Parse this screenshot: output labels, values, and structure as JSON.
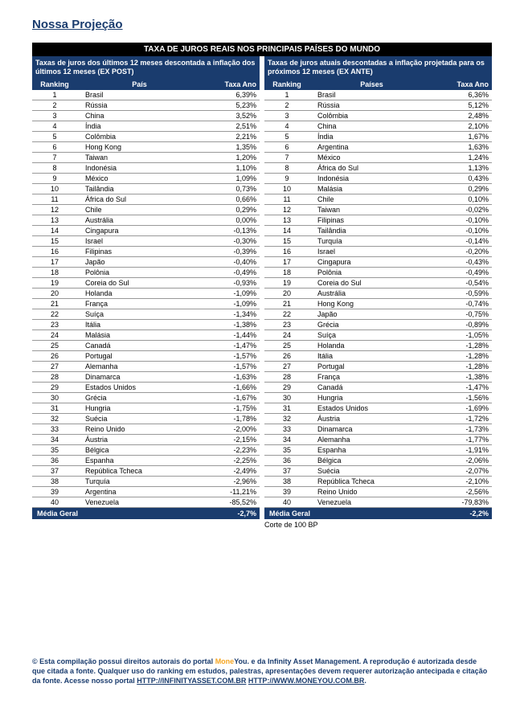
{
  "page_title": "Nossa Projeção",
  "band_title": "TAXA DE JUROS REAIS NOS PRINCIPAIS PAÍSES DO MUNDO",
  "left": {
    "subtitle": "Taxas de juros dos últimos 12 meses descontada a inflação dos últimos 12 meses (EX POST)",
    "col_rank": "Ranking",
    "col_country": "País",
    "col_rate": "Taxa Ano",
    "rows": [
      {
        "rank": "1",
        "country": "Brasil",
        "rate": "6,39%"
      },
      {
        "rank": "2",
        "country": "Rússia",
        "rate": "5,23%"
      },
      {
        "rank": "3",
        "country": "China",
        "rate": "3,52%"
      },
      {
        "rank": "4",
        "country": "Índia",
        "rate": "2,51%"
      },
      {
        "rank": "5",
        "country": "Colômbia",
        "rate": "2,21%"
      },
      {
        "rank": "6",
        "country": "Hong Kong",
        "rate": "1,35%"
      },
      {
        "rank": "7",
        "country": "Taiwan",
        "rate": "1,20%"
      },
      {
        "rank": "8",
        "country": "Indonésia",
        "rate": "1,10%"
      },
      {
        "rank": "9",
        "country": "México",
        "rate": "1,09%"
      },
      {
        "rank": "10",
        "country": "Tailândia",
        "rate": "0,73%"
      },
      {
        "rank": "11",
        "country": "África do Sul",
        "rate": "0,66%"
      },
      {
        "rank": "12",
        "country": "Chile",
        "rate": "0,29%"
      },
      {
        "rank": "13",
        "country": "Austrália",
        "rate": "0,00%"
      },
      {
        "rank": "14",
        "country": "Cingapura",
        "rate": "-0,13%"
      },
      {
        "rank": "15",
        "country": "Israel",
        "rate": "-0,30%"
      },
      {
        "rank": "16",
        "country": "Filipinas",
        "rate": "-0,39%"
      },
      {
        "rank": "17",
        "country": "Japão",
        "rate": "-0,40%"
      },
      {
        "rank": "18",
        "country": "Polônia",
        "rate": "-0,49%"
      },
      {
        "rank": "19",
        "country": "Coreia do Sul",
        "rate": "-0,93%"
      },
      {
        "rank": "20",
        "country": "Holanda",
        "rate": "-1,09%"
      },
      {
        "rank": "21",
        "country": "França",
        "rate": "-1,09%"
      },
      {
        "rank": "22",
        "country": "Suíça",
        "rate": "-1,34%"
      },
      {
        "rank": "23",
        "country": "Itália",
        "rate": "-1,38%"
      },
      {
        "rank": "24",
        "country": "Malásia",
        "rate": "-1,44%"
      },
      {
        "rank": "25",
        "country": "Canadá",
        "rate": "-1,47%"
      },
      {
        "rank": "26",
        "country": "Portugal",
        "rate": "-1,57%"
      },
      {
        "rank": "27",
        "country": "Alemanha",
        "rate": "-1,57%"
      },
      {
        "rank": "28",
        "country": "Dinamarca",
        "rate": "-1,63%"
      },
      {
        "rank": "29",
        "country": "Estados Unidos",
        "rate": "-1,66%"
      },
      {
        "rank": "30",
        "country": "Grécia",
        "rate": "-1,67%"
      },
      {
        "rank": "31",
        "country": "Hungria",
        "rate": "-1,75%"
      },
      {
        "rank": "32",
        "country": "Suécia",
        "rate": "-1,78%"
      },
      {
        "rank": "33",
        "country": "Reino Unido",
        "rate": "-2,00%"
      },
      {
        "rank": "34",
        "country": "Áustria",
        "rate": "-2,15%"
      },
      {
        "rank": "35",
        "country": "Bélgica",
        "rate": "-2,23%"
      },
      {
        "rank": "36",
        "country": "Espanha",
        "rate": "-2,25%"
      },
      {
        "rank": "37",
        "country": "República Tcheca",
        "rate": "-2,49%"
      },
      {
        "rank": "38",
        "country": "Turquía",
        "rate": "-2,96%"
      },
      {
        "rank": "39",
        "country": "Argentina",
        "rate": "-11,21%"
      },
      {
        "rank": "40",
        "country": "Venezuela",
        "rate": "-85,52%"
      }
    ],
    "footer_label": "Média Geral",
    "footer_value": "-2,7%"
  },
  "right": {
    "subtitle": "Taxas de juros atuais descontadas a inflação projetada para os próximos 12 meses (EX ANTE)",
    "col_rank": "Ranking",
    "col_country": "Países",
    "col_rate": "Taxa Ano",
    "rows": [
      {
        "rank": "1",
        "country": "Brasil",
        "rate": "6,36%"
      },
      {
        "rank": "2",
        "country": "Rússia",
        "rate": "5,12%"
      },
      {
        "rank": "3",
        "country": "Colômbia",
        "rate": "2,48%"
      },
      {
        "rank": "4",
        "country": "China",
        "rate": "2,10%"
      },
      {
        "rank": "5",
        "country": "Índia",
        "rate": "1,67%"
      },
      {
        "rank": "6",
        "country": "Argentina",
        "rate": "1,63%"
      },
      {
        "rank": "7",
        "country": "México",
        "rate": "1,24%"
      },
      {
        "rank": "8",
        "country": "África do Sul",
        "rate": "1,13%"
      },
      {
        "rank": "9",
        "country": "Indonésia",
        "rate": "0,43%"
      },
      {
        "rank": "10",
        "country": "Malásia",
        "rate": "0,29%"
      },
      {
        "rank": "11",
        "country": "Chile",
        "rate": "0,10%"
      },
      {
        "rank": "12",
        "country": "Taiwan",
        "rate": "-0,02%"
      },
      {
        "rank": "13",
        "country": "Filipinas",
        "rate": "-0,10%"
      },
      {
        "rank": "14",
        "country": "Tailândia",
        "rate": "-0,10%"
      },
      {
        "rank": "15",
        "country": "Turquía",
        "rate": "-0,14%"
      },
      {
        "rank": "16",
        "country": "Israel",
        "rate": "-0,20%"
      },
      {
        "rank": "17",
        "country": "Cingapura",
        "rate": "-0,43%"
      },
      {
        "rank": "18",
        "country": "Polônia",
        "rate": "-0,49%"
      },
      {
        "rank": "19",
        "country": "Coreia do Sul",
        "rate": "-0,54%"
      },
      {
        "rank": "20",
        "country": "Austrália",
        "rate": "-0,59%"
      },
      {
        "rank": "21",
        "country": "Hong Kong",
        "rate": "-0,74%"
      },
      {
        "rank": "22",
        "country": "Japão",
        "rate": "-0,75%"
      },
      {
        "rank": "23",
        "country": "Grécia",
        "rate": "-0,89%"
      },
      {
        "rank": "24",
        "country": "Suíça",
        "rate": "-1,05%"
      },
      {
        "rank": "25",
        "country": "Holanda",
        "rate": "-1,28%"
      },
      {
        "rank": "26",
        "country": "Itália",
        "rate": "-1,28%"
      },
      {
        "rank": "27",
        "country": "Portugal",
        "rate": "-1,28%"
      },
      {
        "rank": "28",
        "country": "França",
        "rate": "-1,38%"
      },
      {
        "rank": "29",
        "country": "Canadá",
        "rate": "-1,47%"
      },
      {
        "rank": "30",
        "country": "Hungria",
        "rate": "-1,56%"
      },
      {
        "rank": "31",
        "country": "Estados Unidos",
        "rate": "-1,69%"
      },
      {
        "rank": "32",
        "country": "Áustria",
        "rate": "-1,72%"
      },
      {
        "rank": "33",
        "country": "Dinamarca",
        "rate": "-1,73%"
      },
      {
        "rank": "34",
        "country": "Alemanha",
        "rate": "-1,77%"
      },
      {
        "rank": "35",
        "country": "Espanha",
        "rate": "-1,91%"
      },
      {
        "rank": "36",
        "country": "Bélgica",
        "rate": "-2,06%"
      },
      {
        "rank": "37",
        "country": "Suécia",
        "rate": "-2,07%"
      },
      {
        "rank": "38",
        "country": "República Tcheca",
        "rate": "-2,10%"
      },
      {
        "rank": "39",
        "country": "Reino Unido",
        "rate": "-2,56%"
      },
      {
        "rank": "40",
        "country": "Venezuela",
        "rate": "-79,83%"
      }
    ],
    "footer_label": "Média Geral",
    "footer_value": "-2,2%",
    "note": "Corte de 100 BP"
  },
  "copyright": {
    "line1a": "© Esta compilação possui direitos autorais do portal ",
    "brand1": "Mone",
    "brand2": "You.",
    "line1b": " e da Infinity Asset Management. A reprodução é autorizada desde",
    "line2": "que citada a fonte. Qualquer uso do ranking em estudos, palestras, apresentações devem requerer autorização antecipada e citação",
    "line3a": "da fonte. Acesse nosso portal ",
    "link1": "HTTP://INFINITYASSET.COM.BR",
    "sep": " ",
    "link2": "HTTP://WWW.MONEYOU.COM.BR",
    "dot": "."
  }
}
